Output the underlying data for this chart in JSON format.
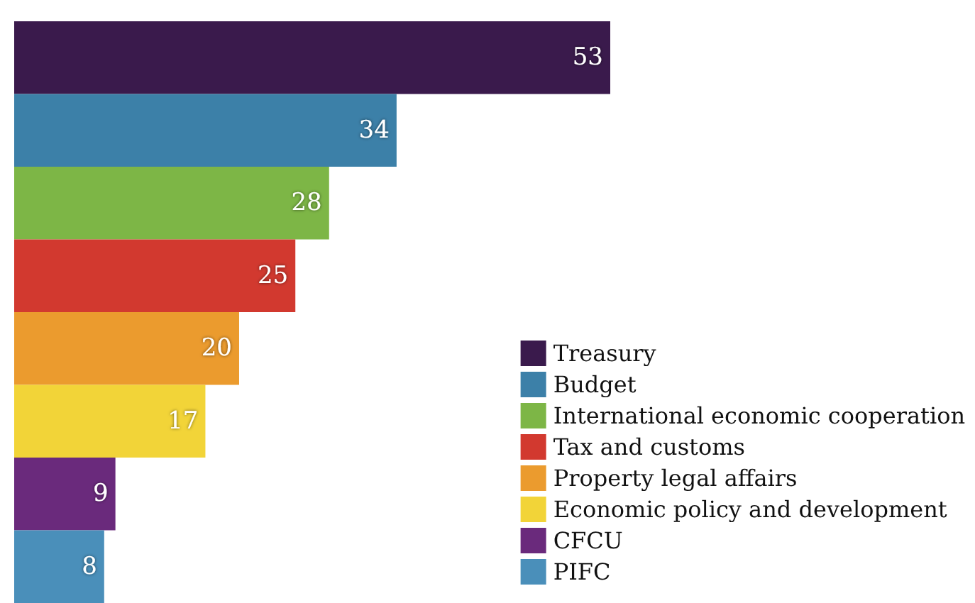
{
  "chart_data": {
    "type": "bar",
    "orientation": "horizontal",
    "categories": [
      null,
      null,
      null,
      null,
      null,
      null,
      null,
      null
    ],
    "series": [
      {
        "name": "Treasury",
        "color": "#3a1a4c",
        "values": [
          53,
          null,
          null,
          null,
          null,
          null,
          null,
          null
        ]
      },
      {
        "name": "Budget",
        "color": "#3c80a8",
        "values": [
          null,
          34,
          null,
          null,
          null,
          null,
          null,
          null
        ]
      },
      {
        "name": "International economic cooperation",
        "color": "#7db646",
        "values": [
          null,
          null,
          28,
          null,
          null,
          null,
          null,
          null
        ]
      },
      {
        "name": "Tax and customs",
        "color": "#d2392f",
        "values": [
          null,
          null,
          null,
          25,
          null,
          null,
          null,
          null
        ]
      },
      {
        "name": "Property legal affairs",
        "color": "#eb9b2e",
        "values": [
          null,
          null,
          null,
          null,
          20,
          null,
          null,
          null
        ]
      },
      {
        "name": "Economic policy and development",
        "color": "#f2d438",
        "values": [
          null,
          null,
          null,
          null,
          null,
          17,
          null,
          null
        ]
      },
      {
        "name": "CFCU",
        "color": "#6a2a7c",
        "values": [
          null,
          null,
          null,
          null,
          null,
          null,
          9,
          null
        ]
      },
      {
        "name": "PIFC",
        "color": "#4a8fba",
        "values": [
          null,
          null,
          null,
          null,
          null,
          null,
          null,
          8
        ]
      }
    ],
    "stacked": true,
    "data_labels": true,
    "tick_labels": false,
    "legend": "bottom right",
    "grid": false
  }
}
